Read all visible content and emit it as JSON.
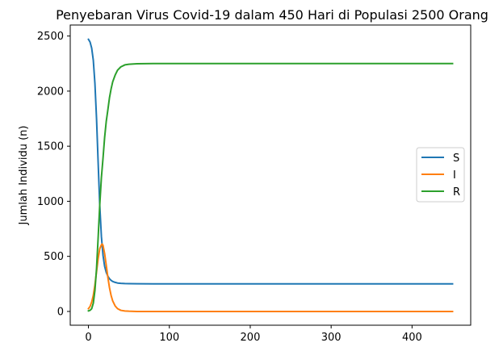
{
  "chart_data": {
    "type": "line",
    "title": "Penyebaran Virus Covid-19 dalam 450 Hari di Populasi 2500 Orang",
    "xlabel": "",
    "ylabel": "Jumlah Individu (n)",
    "xlim": [
      -22.5,
      472.5
    ],
    "ylim": [
      -125,
      2600
    ],
    "xticks": [
      0,
      100,
      200,
      300,
      400
    ],
    "yticks": [
      0,
      500,
      1000,
      1500,
      2000,
      2500
    ],
    "grid": false,
    "legend": "center-right",
    "series": [
      {
        "name": "S",
        "color": "#1f77b4",
        "x": [
          0,
          2,
          4,
          6,
          8,
          10,
          12,
          14,
          16,
          18,
          20,
          22,
          24,
          26,
          28,
          30,
          33,
          36,
          40,
          45,
          50,
          60,
          80,
          100,
          150,
          200,
          300,
          400,
          450
        ],
        "y": [
          2470,
          2445,
          2390,
          2280,
          2070,
          1750,
          1350,
          960,
          680,
          510,
          410,
          355,
          320,
          297,
          282,
          272,
          264,
          258,
          255,
          253,
          252,
          251,
          250,
          250,
          250,
          250,
          250,
          250,
          250
        ]
      },
      {
        "name": "I",
        "color": "#ff7f0e",
        "x": [
          0,
          2,
          4,
          6,
          8,
          10,
          12,
          14,
          16,
          17,
          18,
          20,
          22,
          24,
          26,
          28,
          30,
          33,
          36,
          40,
          45,
          50,
          60,
          80,
          100,
          150,
          200,
          300,
          400,
          450
        ],
        "y": [
          25,
          45,
          85,
          145,
          240,
          360,
          480,
          570,
          605,
          612,
          600,
          525,
          420,
          310,
          215,
          145,
          95,
          50,
          25,
          10,
          4,
          2,
          0,
          0,
          0,
          0,
          0,
          0,
          0,
          0
        ]
      },
      {
        "name": "R",
        "color": "#2ca02c",
        "x": [
          0,
          2,
          4,
          6,
          8,
          10,
          12,
          14,
          16,
          18,
          20,
          22,
          24,
          26,
          28,
          30,
          33,
          36,
          40,
          45,
          50,
          60,
          80,
          100,
          150,
          200,
          300,
          400,
          450
        ],
        "y": [
          5,
          10,
          25,
          75,
          190,
          390,
          670,
          970,
          1215,
          1390,
          1580,
          1725,
          1830,
          1940,
          2020,
          2085,
          2145,
          2190,
          2220,
          2238,
          2244,
          2248,
          2250,
          2250,
          2250,
          2250,
          2250,
          2250,
          2250
        ]
      }
    ]
  }
}
